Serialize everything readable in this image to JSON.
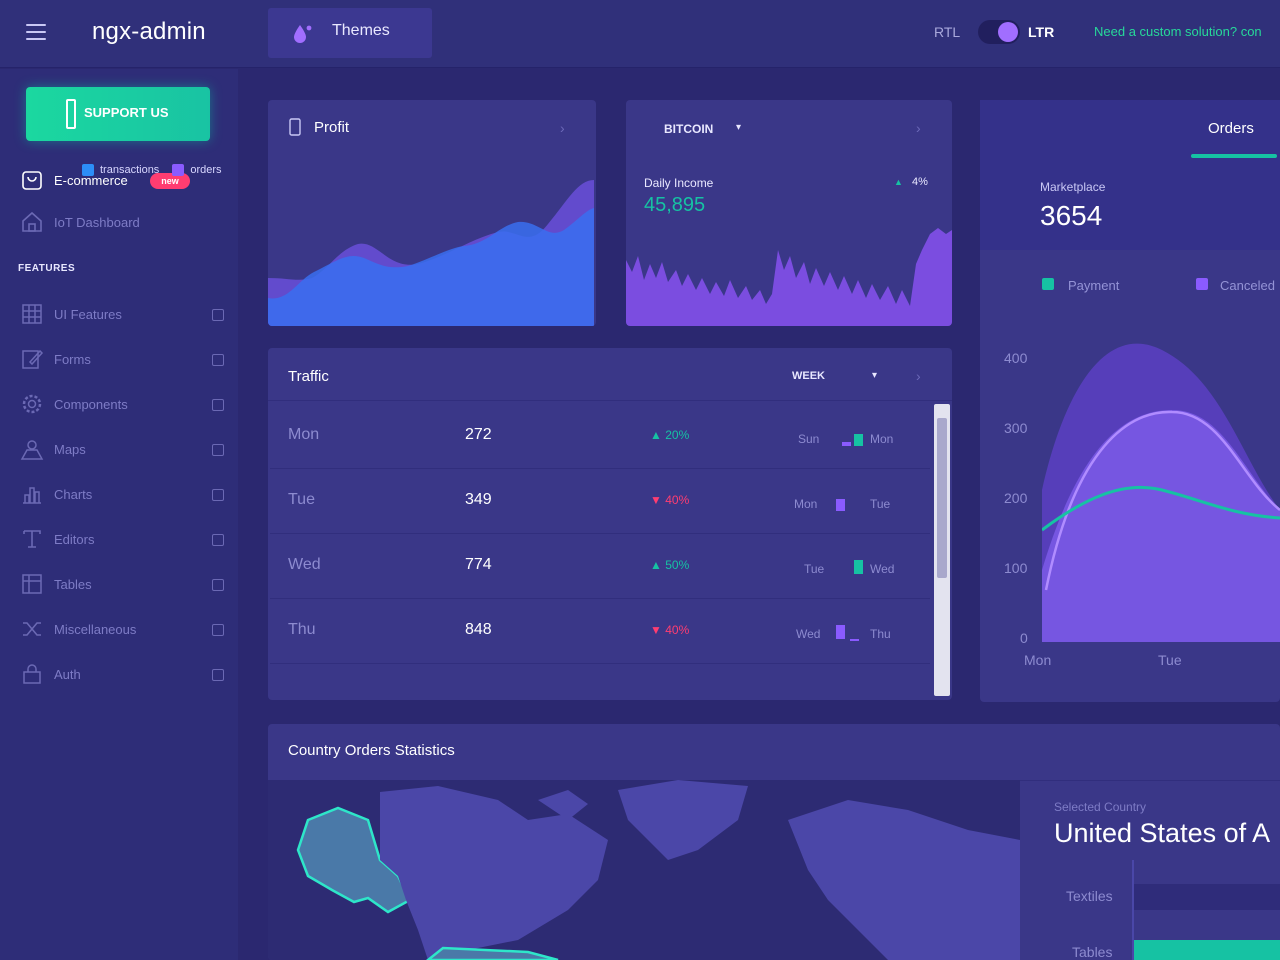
{
  "header": {
    "logo": "ngx-admin",
    "themes_label": "Themes",
    "rtl_label": "RTL",
    "ltr_label": "LTR",
    "custom_link": "Need a custom solution? con"
  },
  "sidebar": {
    "support_label": "SUPPORT US",
    "items": [
      {
        "label": "E-commerce",
        "badge": "new",
        "icon": "shopping-cart-icon"
      },
      {
        "label": "IoT Dashboard",
        "icon": "home-icon"
      }
    ],
    "group_label": "FEATURES",
    "features": [
      {
        "label": "UI Features",
        "icon": "grid-icon"
      },
      {
        "label": "Forms",
        "icon": "edit-icon"
      },
      {
        "label": "Components",
        "icon": "gear-icon"
      },
      {
        "label": "Maps",
        "icon": "map-icon"
      },
      {
        "label": "Charts",
        "icon": "chart-icon"
      },
      {
        "label": "Editors",
        "icon": "text-icon"
      },
      {
        "label": "Tables",
        "icon": "table-icon"
      },
      {
        "label": "Miscellaneous",
        "icon": "shuffle-icon"
      },
      {
        "label": "Auth",
        "icon": "lock-icon"
      }
    ]
  },
  "profit": {
    "title": "Profit",
    "legend": [
      {
        "label": "transactions",
        "color": "#2c8ef8"
      },
      {
        "label": "orders",
        "color": "#8a5bff"
      }
    ]
  },
  "bitcoin": {
    "currency": "BITCOIN",
    "daily_label": "Daily Income",
    "daily_value": "45,895",
    "percent": "4%"
  },
  "traffic": {
    "title": "Traffic",
    "period": "WEEK",
    "rows": [
      {
        "day": "Mon",
        "value": "272",
        "delta": "20%",
        "dir": "up",
        "from": "Sun",
        "to": "Mon",
        "color": "#16c2a3"
      },
      {
        "day": "Tue",
        "value": "349",
        "delta": "40%",
        "dir": "down",
        "from": "Mon",
        "to": "Tue",
        "color": "#8a5bff"
      },
      {
        "day": "Wed",
        "value": "774",
        "delta": "50%",
        "dir": "up",
        "from": "Tue",
        "to": "Wed",
        "color": "#16c2a3"
      },
      {
        "day": "Thu",
        "value": "848",
        "delta": "40%",
        "dir": "down",
        "from": "Wed",
        "to": "Thu",
        "color": "#8a5bff"
      }
    ]
  },
  "orders": {
    "tab": "Orders",
    "market_label": "Marketplace",
    "market_value": "3654",
    "legend": [
      {
        "label": "Payment",
        "color": "#16c2a3"
      },
      {
        "label": "Canceled",
        "color": "#8a5bff"
      }
    ],
    "y_ticks": [
      "400",
      "300",
      "200",
      "100",
      "0"
    ],
    "x_ticks": [
      "Mon",
      "Tue"
    ]
  },
  "country": {
    "title": "Country Orders Statistics",
    "selected_label": "Selected Country",
    "selected_value": "United States of A",
    "categories": [
      "Textiles",
      "Tables"
    ]
  },
  "colors": {
    "accent_green": "#16c2a3",
    "accent_purple": "#8a5bff",
    "accent_red": "#ff3d71",
    "accent_blue": "#2c8ef8"
  }
}
